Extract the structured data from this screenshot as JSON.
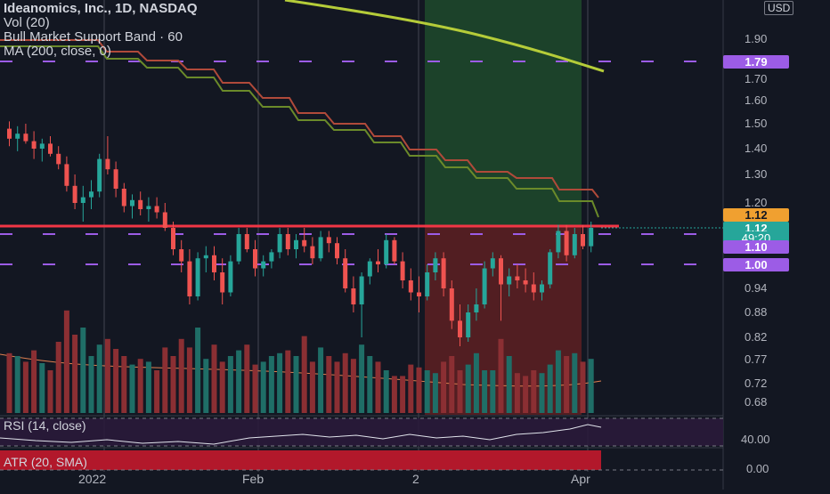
{
  "legend": {
    "title": "Ideanomics, Inc., 1D, NASDAQ",
    "vol": "Vol (20)",
    "band": "Bull Market Support Band · 60",
    "ma": "MA (200, close, 0)"
  },
  "currency": "USD",
  "rsi_label": "RSI (14, close)",
  "atr_label": "ATR (20, SMA)",
  "price_axis": [
    "1.90",
    "1.70",
    "1.60",
    "1.50",
    "1.40",
    "1.30",
    "1.20",
    "0.94",
    "0.88",
    "0.82",
    "0.77",
    "0.72",
    "0.68"
  ],
  "rsi_axis": "40.00",
  "atr_axis": "0.00",
  "tags": {
    "level_179": "1.79",
    "level_112": "1.12",
    "current_price": "1.12",
    "countdown": "49:20",
    "level_110": "1.10",
    "level_100": "1.00"
  },
  "x_axis": [
    "2022",
    "Feb",
    "2",
    "Apr"
  ],
  "colors": {
    "background": "#131722",
    "up": "#26a69a",
    "down": "#ef5350",
    "dashed_level": "#9c5ce6",
    "resistance": "#f23645",
    "ma200": "#b5cc39",
    "band": "#7f3f1f"
  },
  "chart_data": {
    "type": "candlestick",
    "series": [
      {
        "name": "Ideanomics, Inc., 1D, NASDAQ",
        "values": [
          [
            1.48,
            1.51,
            1.41,
            1.44
          ],
          [
            1.44,
            1.49,
            1.39,
            1.46
          ],
          [
            1.46,
            1.5,
            1.42,
            1.43
          ],
          [
            1.43,
            1.47,
            1.36,
            1.4
          ],
          [
            1.4,
            1.44,
            1.35,
            1.42
          ],
          [
            1.42,
            1.45,
            1.37,
            1.38
          ],
          [
            1.38,
            1.41,
            1.32,
            1.34
          ],
          [
            1.34,
            1.37,
            1.24,
            1.26
          ],
          [
            1.26,
            1.3,
            1.18,
            1.2
          ],
          [
            1.2,
            1.26,
            1.14,
            1.22
          ],
          [
            1.22,
            1.28,
            1.18,
            1.24
          ],
          [
            1.24,
            1.38,
            1.22,
            1.36
          ],
          [
            1.36,
            1.45,
            1.3,
            1.32
          ],
          [
            1.32,
            1.35,
            1.22,
            1.25
          ],
          [
            1.25,
            1.27,
            1.17,
            1.19
          ],
          [
            1.19,
            1.23,
            1.15,
            1.21
          ],
          [
            1.21,
            1.24,
            1.16,
            1.18
          ],
          [
            1.18,
            1.22,
            1.14,
            1.19
          ],
          [
            1.19,
            1.22,
            1.15,
            1.17
          ],
          [
            1.17,
            1.2,
            1.11,
            1.12
          ],
          [
            1.12,
            1.14,
            1.03,
            1.05
          ],
          [
            1.05,
            1.08,
            0.98,
            1.01
          ],
          [
            1.01,
            1.05,
            0.9,
            0.92
          ],
          [
            0.92,
            1.04,
            0.91,
            1.02
          ],
          [
            1.02,
            1.06,
            0.98,
            1.03
          ],
          [
            1.03,
            1.06,
            0.96,
            0.98
          ],
          [
            0.98,
            1.02,
            0.9,
            0.93
          ],
          [
            0.93,
            1.03,
            0.92,
            1.01
          ],
          [
            1.01,
            1.12,
            1.0,
            1.1
          ],
          [
            1.1,
            1.12,
            1.04,
            1.05
          ],
          [
            1.05,
            1.08,
            0.97,
            0.99
          ],
          [
            0.99,
            1.03,
            0.97,
            1.01
          ],
          [
            1.01,
            1.05,
            0.99,
            1.04
          ],
          [
            1.04,
            1.12,
            1.02,
            1.1
          ],
          [
            1.1,
            1.12,
            1.03,
            1.05
          ],
          [
            1.05,
            1.1,
            1.02,
            1.08
          ],
          [
            1.08,
            1.12,
            1.04,
            1.06
          ],
          [
            1.06,
            1.09,
            1.0,
            1.02
          ],
          [
            1.02,
            1.11,
            1.01,
            1.09
          ],
          [
            1.09,
            1.11,
            1.04,
            1.07
          ],
          [
            1.07,
            1.09,
            1.0,
            1.02
          ],
          [
            1.02,
            1.05,
            0.93,
            0.94
          ],
          [
            0.94,
            0.97,
            0.88,
            0.9
          ],
          [
            0.9,
            0.98,
            0.82,
            0.97
          ],
          [
            0.97,
            1.02,
            0.95,
            1.01
          ],
          [
            1.01,
            1.05,
            0.98,
            1.0
          ],
          [
            1.0,
            1.1,
            0.99,
            1.08
          ],
          [
            1.08,
            1.09,
            1.0,
            1.01
          ],
          [
            1.01,
            1.04,
            0.94,
            0.96
          ],
          [
            0.96,
            0.99,
            0.91,
            0.93
          ],
          [
            0.93,
            0.97,
            0.88,
            0.92
          ],
          [
            0.92,
            1.0,
            0.91,
            0.98
          ],
          [
            0.98,
            1.04,
            0.96,
            1.02
          ],
          [
            1.02,
            1.04,
            0.92,
            0.94
          ],
          [
            0.94,
            0.96,
            0.84,
            0.86
          ],
          [
            0.86,
            0.9,
            0.8,
            0.82
          ],
          [
            0.82,
            0.9,
            0.81,
            0.88
          ],
          [
            0.88,
            0.94,
            0.86,
            0.9
          ],
          [
            0.9,
            1.01,
            0.89,
            0.99
          ],
          [
            0.99,
            1.04,
            0.97,
            1.02
          ],
          [
            1.02,
            1.03,
            0.86,
            0.95
          ],
          [
            0.95,
            0.99,
            0.92,
            0.97
          ],
          [
            0.97,
            1.0,
            0.94,
            0.96
          ],
          [
            0.96,
            0.99,
            0.93,
            0.95
          ],
          [
            0.95,
            0.98,
            0.91,
            0.93
          ],
          [
            0.93,
            0.96,
            0.91,
            0.95
          ],
          [
            0.95,
            1.05,
            0.94,
            1.04
          ],
          [
            1.04,
            1.13,
            1.02,
            1.11
          ],
          [
            1.11,
            1.13,
            1.01,
            1.03
          ],
          [
            1.03,
            1.12,
            1.02,
            1.1
          ],
          [
            1.1,
            1.13,
            1.05,
            1.06
          ],
          [
            1.06,
            1.14,
            1.04,
            1.12
          ]
        ]
      },
      {
        "name": "Vol (20)",
        "values": [
          42,
          40,
          36,
          44,
          35,
          30,
          50,
          72,
          55,
          60,
          40,
          48,
          52,
          45,
          40,
          34,
          38,
          36,
          30,
          46,
          40,
          52,
          46,
          60,
          38,
          48,
          36,
          40,
          44,
          48,
          34,
          36,
          40,
          42,
          44,
          40,
          54,
          36,
          46,
          40,
          36,
          42,
          38,
          48,
          40,
          36,
          30,
          26,
          26,
          34,
          32,
          30,
          28,
          36,
          40,
          30,
          34,
          42,
          30,
          30,
          52,
          40,
          28,
          26,
          30,
          28,
          34,
          44,
          40,
          42,
          36,
          38
        ]
      }
    ]
  }
}
